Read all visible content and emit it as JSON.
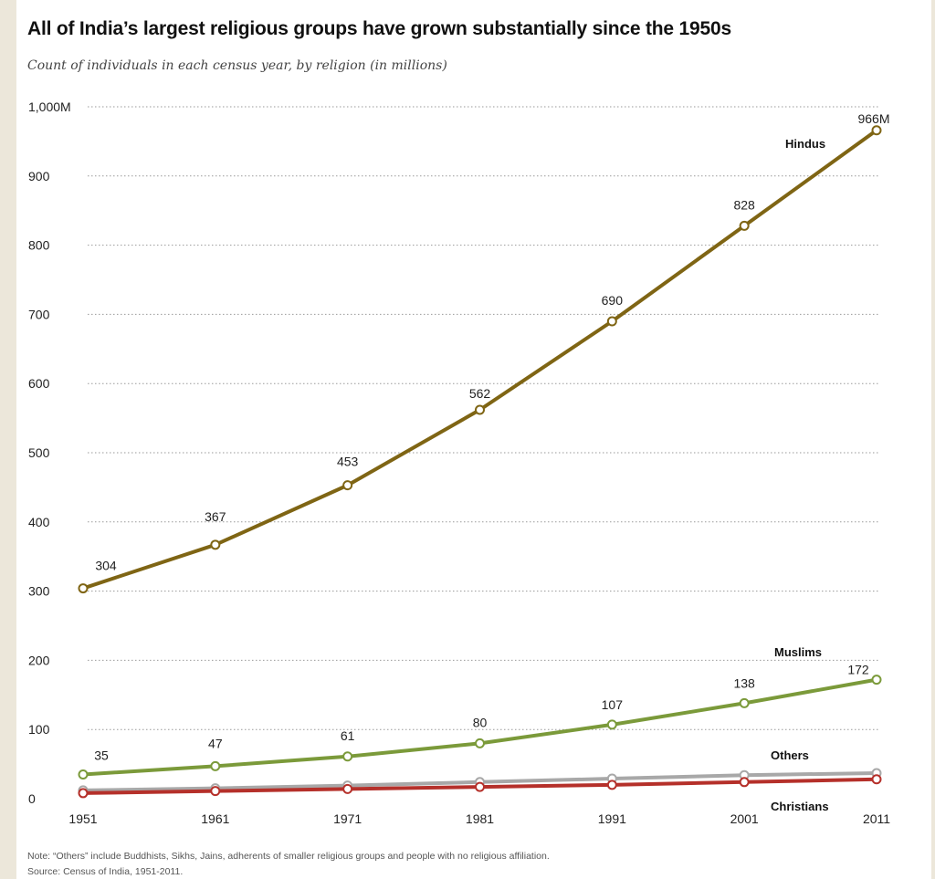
{
  "title": "All of India’s largest religious groups have grown substantially since the 1950s",
  "subtitle": "Count of individuals in each census year, by religion (in millions)",
  "note": "Note: “Others” include Buddhists, Sikhs, Jains, adherents of smaller religious groups and people with no religious affiliation.",
  "source": "Source: Census of India, 1951-2011.",
  "chart_data": {
    "type": "line",
    "categories": [
      "1951",
      "1961",
      "1971",
      "1981",
      "1991",
      "2001",
      "2011"
    ],
    "ylim": [
      0,
      1000
    ],
    "yticks": [
      0,
      100,
      200,
      300,
      400,
      500,
      600,
      700,
      800,
      900,
      1000
    ],
    "ytick_labels": [
      "0",
      "100",
      "200",
      "300",
      "400",
      "500",
      "600",
      "700",
      "800",
      "900",
      "1,000M"
    ],
    "grid": true,
    "series": [
      {
        "name": "Hindus",
        "color": "#7f6514",
        "values": [
          304,
          367,
          453,
          562,
          690,
          828,
          966
        ],
        "labels": [
          "304",
          "367",
          "453",
          "562",
          "690",
          "828",
          "966M"
        ]
      },
      {
        "name": "Muslims",
        "color": "#7b9a3a",
        "values": [
          35,
          47,
          61,
          80,
          107,
          138,
          172
        ],
        "labels": [
          "35",
          "47",
          "61",
          "80",
          "107",
          "138",
          "172"
        ]
      },
      {
        "name": "Others",
        "color": "#a8a8a8",
        "values": [
          12,
          15,
          19,
          24,
          29,
          34,
          37
        ],
        "labels": []
      },
      {
        "name": "Christians",
        "color": "#b5302a",
        "values": [
          8,
          11,
          14,
          17,
          20,
          24,
          28
        ],
        "labels": []
      }
    ]
  }
}
